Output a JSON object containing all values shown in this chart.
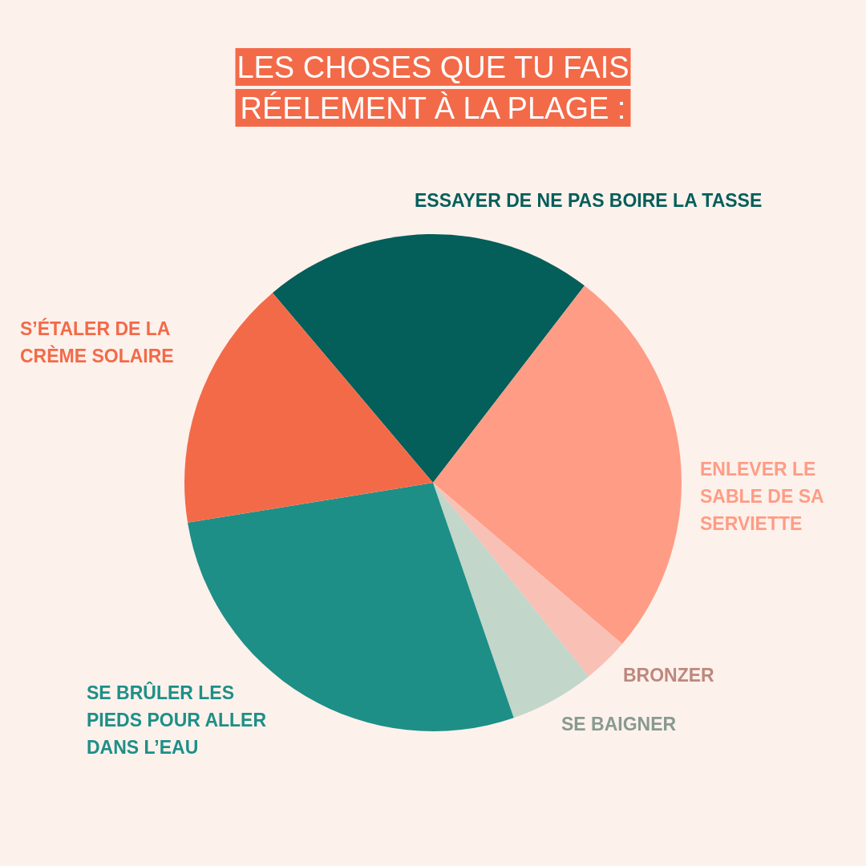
{
  "chart_data": {
    "type": "pie",
    "title": "LES CHOSES QUE TU FAIS\nRÉELEMENT À LA PLAGE :",
    "categories": [
      "ESSAYER DE NE PAS BOIRE LA TASSE",
      "ENLEVER LE SABLE DE SA SERVIETTE",
      "BRONZER",
      "SE BAIGNER",
      "SE BRÛLER LES PIEDS POUR ALLER DANS L’EAU",
      "S’ÉTALER DE LA CRÈME SOLAIRE"
    ],
    "values": [
      21.6,
      25.8,
      3,
      5.5,
      27.7,
      16.4
    ],
    "colors": [
      "#045e5a",
      "#ff9c85",
      "#f9c0b5",
      "#c3d6ca",
      "#1d8f87",
      "#f36a48"
    ]
  }
}
